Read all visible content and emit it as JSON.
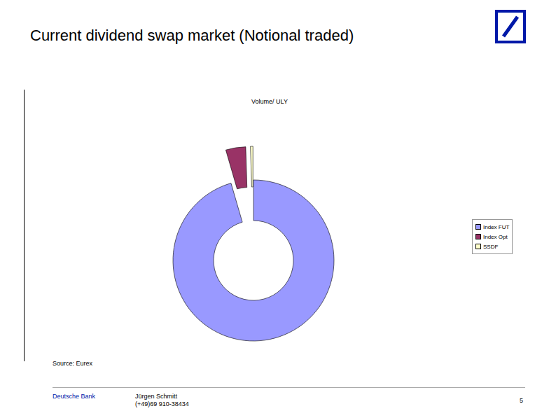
{
  "slide": {
    "title": "Current dividend swap market (Notional traded)",
    "source": "Source: Eurex",
    "footer": {
      "company": "Deutsche Bank",
      "author": "Jürgen Schmitt",
      "phone": "(+49)69 910-38434",
      "page": 5
    }
  },
  "chart_data": {
    "type": "donut",
    "title": "Volume/ ULY",
    "categories": [
      "Index FUT",
      "Index Opt",
      "SSDF"
    ],
    "values": [
      95.5,
      4,
      0.5
    ],
    "colors": [
      "#9999ff",
      "#993366",
      "#ffffcc"
    ],
    "legend": "right"
  }
}
